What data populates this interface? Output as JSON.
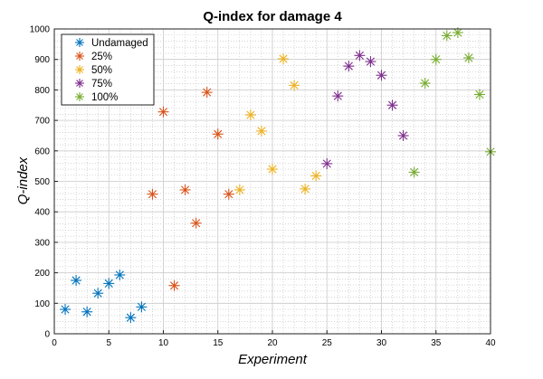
{
  "chart_data": {
    "type": "scatter",
    "title": "Q-index for damage 4",
    "xlabel": "Experiment",
    "ylabel": "Q-index",
    "xlim": [
      0,
      40
    ],
    "ylim": [
      0,
      1000
    ],
    "xticks": [
      0,
      5,
      10,
      15,
      20,
      25,
      30,
      35,
      40
    ],
    "yticks": [
      0,
      100,
      200,
      300,
      400,
      500,
      600,
      700,
      800,
      900,
      1000
    ],
    "grid": true,
    "minor_grid": true,
    "legend_position": "top-left",
    "marker": "asterisk",
    "series": [
      {
        "name": "Undamaged",
        "color": "#0072BD",
        "x": [
          1,
          2,
          3,
          4,
          5,
          6,
          7,
          8
        ],
        "y": [
          80,
          175,
          72,
          133,
          165,
          193,
          53,
          88
        ]
      },
      {
        "name": "25%",
        "color": "#D95319",
        "x": [
          9,
          10,
          11,
          12,
          13,
          14,
          15,
          16
        ],
        "y": [
          458,
          728,
          158,
          472,
          363,
          792,
          655,
          458
        ]
      },
      {
        "name": "50%",
        "color": "#EDB120",
        "x": [
          17,
          18,
          19,
          20,
          21,
          22,
          23,
          24
        ],
        "y": [
          472,
          718,
          665,
          540,
          902,
          815,
          475,
          518
        ]
      },
      {
        "name": "75%",
        "color": "#7E2F8E",
        "x": [
          25,
          26,
          27,
          28,
          29,
          30,
          31,
          32
        ],
        "y": [
          558,
          780,
          878,
          913,
          893,
          848,
          750,
          650
        ]
      },
      {
        "name": "100%",
        "color": "#77AC30",
        "x": [
          33,
          34,
          35,
          36,
          37,
          38,
          39,
          40
        ],
        "y": [
          530,
          822,
          900,
          978,
          988,
          905,
          785,
          597
        ]
      }
    ]
  }
}
